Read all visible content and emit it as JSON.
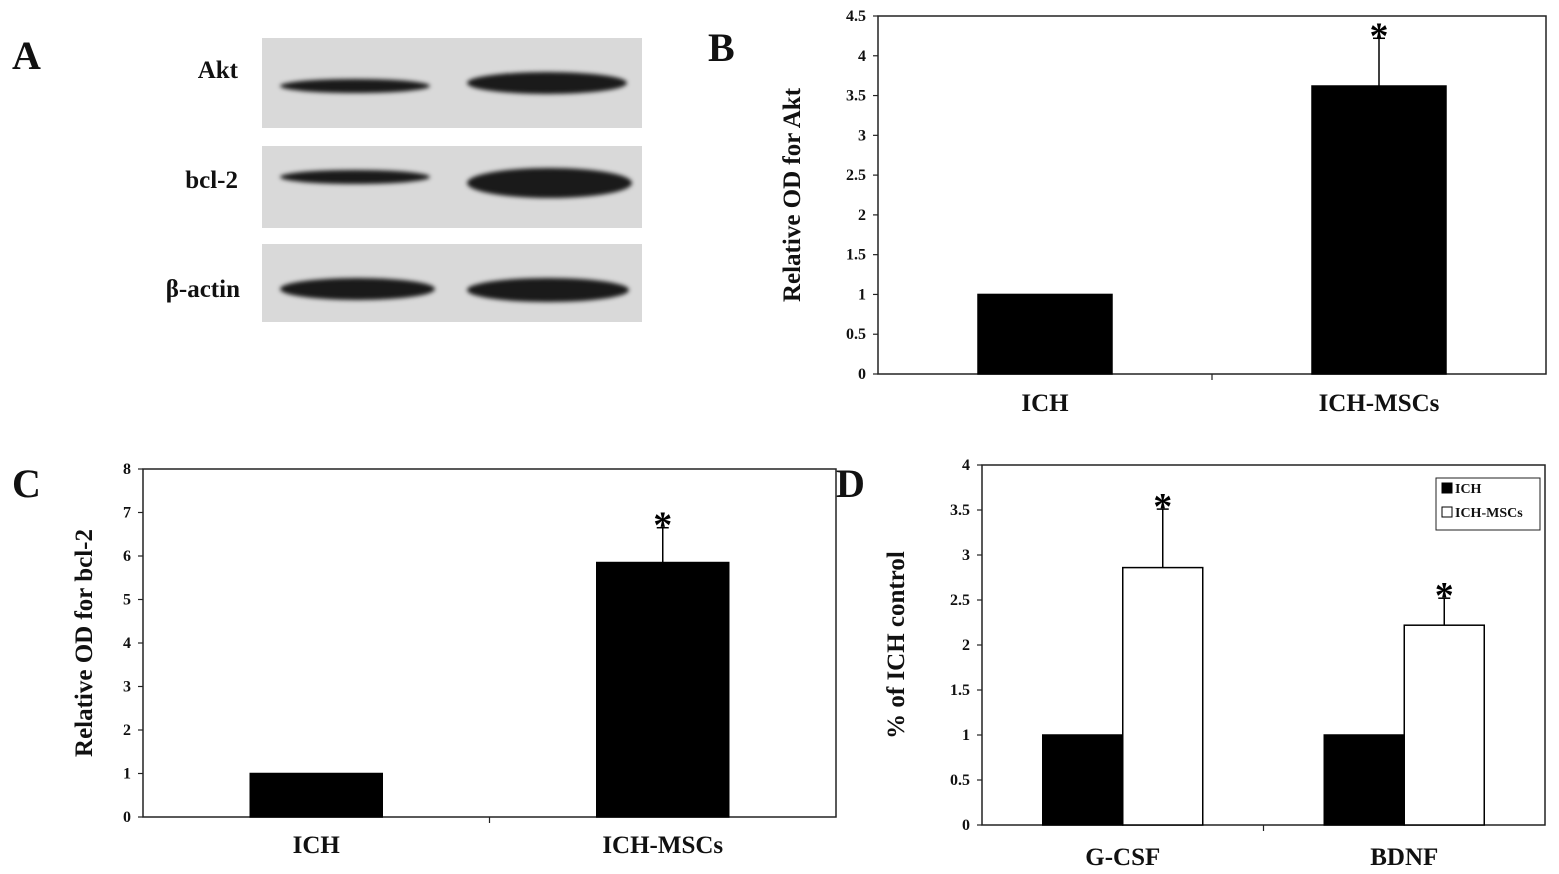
{
  "panels": {
    "a": "A",
    "b": "B",
    "c": "C",
    "d": "D"
  },
  "blot": {
    "rows": [
      {
        "label": "Akt",
        "band_intensity": [
          0.65,
          0.9
        ]
      },
      {
        "label": "bcl-2",
        "band_intensity": [
          0.55,
          0.95
        ]
      },
      {
        "label": "β-actin",
        "band_intensity": [
          0.9,
          0.95
        ]
      }
    ]
  },
  "colors": {
    "ich": "#000000",
    "ich_mscs": "#ffffff",
    "blot_bg": "#d9d9d9"
  },
  "chart_data": [
    {
      "id": "B",
      "type": "bar",
      "categories": [
        "ICH",
        "ICH-MSCs"
      ],
      "values": [
        1.0,
        3.62
      ],
      "errors": [
        0,
        0.6
      ],
      "significance": [
        "",
        "*"
      ],
      "ylabel": "Relative OD for Akt",
      "ylim": [
        0,
        4.5
      ],
      "yticks": [
        "0",
        "0.5",
        "1",
        "1.5",
        "2",
        "2.5",
        "3",
        "3.5",
        "4",
        "4.5"
      ],
      "grid": false
    },
    {
      "id": "C",
      "type": "bar",
      "categories": [
        "ICH",
        "ICH-MSCs"
      ],
      "values": [
        1.0,
        5.85
      ],
      "errors": [
        0,
        0.8
      ],
      "significance": [
        "",
        "*"
      ],
      "ylabel": "Relative OD for bcl-2",
      "ylim": [
        0,
        8
      ],
      "yticks": [
        "0",
        "1",
        "2",
        "3",
        "4",
        "5",
        "6",
        "7",
        "8"
      ],
      "grid": false
    },
    {
      "id": "D",
      "type": "bar",
      "categories": [
        "G-CSF",
        "BDNF"
      ],
      "series": [
        {
          "name": "ICH",
          "values": [
            1.0,
            1.0
          ],
          "errors": [
            0,
            0
          ],
          "significance": [
            "",
            ""
          ]
        },
        {
          "name": "ICH-MSCs",
          "values": [
            2.86,
            2.22
          ],
          "errors": [
            0.65,
            0.3
          ],
          "significance": [
            "*",
            "*"
          ]
        }
      ],
      "ylabel": "% of ICH control",
      "ylim": [
        0,
        4
      ],
      "yticks": [
        "0",
        "0.5",
        "1",
        "1.5",
        "2",
        "2.5",
        "3",
        "3.5",
        "4"
      ],
      "legend": "top-right",
      "grid": false
    }
  ]
}
